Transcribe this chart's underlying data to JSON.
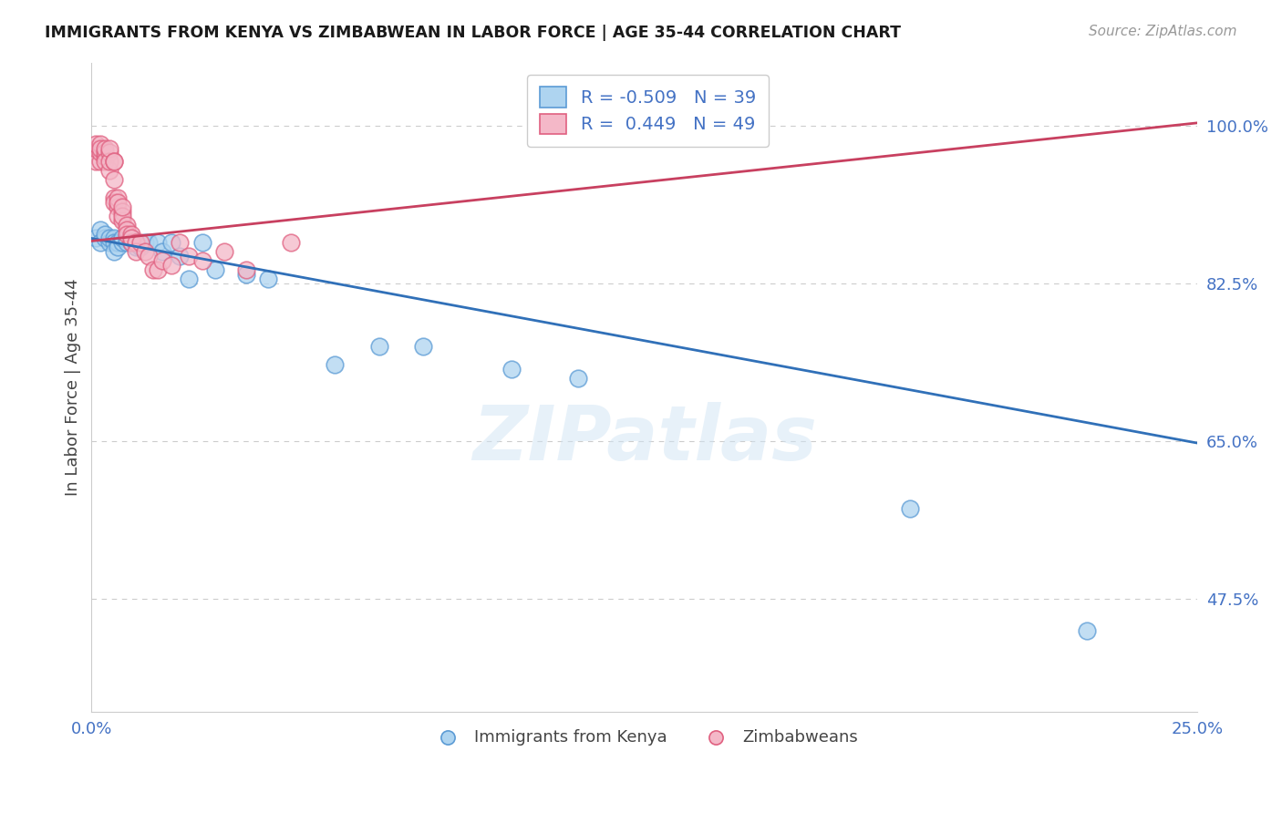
{
  "title": "IMMIGRANTS FROM KENYA VS ZIMBABWEAN IN LABOR FORCE | AGE 35-44 CORRELATION CHART",
  "source": "Source: ZipAtlas.com",
  "ylabel": "In Labor Force | Age 35-44",
  "xlim": [
    0.0,
    0.25
  ],
  "ylim": [
    0.35,
    1.07
  ],
  "xtick_labels": [
    "0.0%",
    "25.0%"
  ],
  "xtick_positions": [
    0.0,
    0.25
  ],
  "ytick_labels": [
    "47.5%",
    "65.0%",
    "82.5%",
    "100.0%"
  ],
  "ytick_positions": [
    0.475,
    0.65,
    0.825,
    1.0
  ],
  "grid_color": "#cccccc",
  "background_color": "#ffffff",
  "watermark": "ZIPatlas",
  "kenya_color": "#aed4f0",
  "kenya_edge_color": "#5b9bd5",
  "zimbabwe_color": "#f4b8c8",
  "zimbabwe_edge_color": "#e06080",
  "kenya_R": -0.509,
  "kenya_N": 39,
  "zimbabwe_R": 0.449,
  "zimbabwe_N": 49,
  "kenya_line_color": "#3070b8",
  "zimbabwe_line_color": "#c84060",
  "legend_kenya_label": "Immigrants from Kenya",
  "legend_zimbabwe_label": "Zimbabweans",
  "kenya_scatter_x": [
    0.001,
    0.002,
    0.002,
    0.003,
    0.003,
    0.004,
    0.004,
    0.005,
    0.005,
    0.005,
    0.006,
    0.006,
    0.007,
    0.007,
    0.008,
    0.008,
    0.009,
    0.009,
    0.01,
    0.01,
    0.011,
    0.012,
    0.013,
    0.015,
    0.016,
    0.018,
    0.02,
    0.022,
    0.025,
    0.028,
    0.035,
    0.04,
    0.055,
    0.065,
    0.075,
    0.095,
    0.11,
    0.185,
    0.225
  ],
  "kenya_scatter_y": [
    0.875,
    0.885,
    0.87,
    0.875,
    0.88,
    0.87,
    0.875,
    0.875,
    0.87,
    0.86,
    0.87,
    0.865,
    0.87,
    0.875,
    0.875,
    0.87,
    0.87,
    0.875,
    0.87,
    0.865,
    0.865,
    0.87,
    0.87,
    0.87,
    0.86,
    0.87,
    0.855,
    0.83,
    0.87,
    0.84,
    0.835,
    0.83,
    0.735,
    0.755,
    0.755,
    0.73,
    0.72,
    0.575,
    0.44
  ],
  "zimbabwe_scatter_x": [
    0.001,
    0.001,
    0.001,
    0.002,
    0.002,
    0.002,
    0.002,
    0.003,
    0.003,
    0.003,
    0.003,
    0.004,
    0.004,
    0.004,
    0.004,
    0.005,
    0.005,
    0.005,
    0.005,
    0.005,
    0.006,
    0.006,
    0.006,
    0.006,
    0.007,
    0.007,
    0.007,
    0.007,
    0.008,
    0.008,
    0.008,
    0.009,
    0.009,
    0.009,
    0.01,
    0.01,
    0.011,
    0.012,
    0.013,
    0.014,
    0.015,
    0.016,
    0.018,
    0.02,
    0.022,
    0.025,
    0.03,
    0.035,
    0.045
  ],
  "zimbabwe_scatter_y": [
    0.96,
    0.975,
    0.98,
    0.96,
    0.97,
    0.98,
    0.975,
    0.965,
    0.97,
    0.975,
    0.96,
    0.97,
    0.95,
    0.96,
    0.975,
    0.96,
    0.94,
    0.92,
    0.915,
    0.96,
    0.91,
    0.92,
    0.915,
    0.9,
    0.905,
    0.895,
    0.9,
    0.91,
    0.89,
    0.885,
    0.88,
    0.88,
    0.87,
    0.875,
    0.87,
    0.86,
    0.87,
    0.86,
    0.855,
    0.84,
    0.84,
    0.85,
    0.845,
    0.87,
    0.855,
    0.85,
    0.86,
    0.84,
    0.87
  ],
  "kenya_line_x": [
    0.0,
    0.25
  ],
  "kenya_line_y": [
    0.875,
    0.648
  ],
  "zimbabwe_line_x": [
    0.0,
    0.25
  ],
  "zimbabwe_line_y": [
    0.872,
    1.003
  ]
}
